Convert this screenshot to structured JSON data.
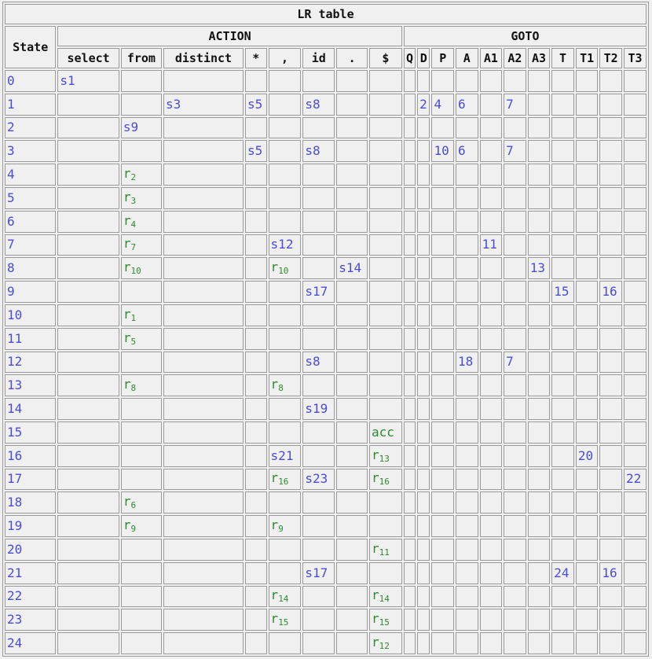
{
  "title": "LR table",
  "state_header": "State",
  "action_header": "ACTION",
  "goto_header": "GOTO",
  "action_symbols": [
    "select",
    "from",
    "distinct",
    "*",
    ",",
    "id",
    ".",
    "$"
  ],
  "goto_symbols": [
    "Q",
    "D",
    "P",
    "A",
    "A1",
    "A2",
    "A3",
    "T",
    "T1",
    "T2",
    "T3"
  ],
  "colors": {
    "shift_goto": "#4b4bd6",
    "reduce_accept": "#2e8b2e",
    "border": "#9a9a9a",
    "background": "#f0f0f0"
  },
  "rows": [
    {
      "state": "0",
      "action": {
        "select": "s1"
      },
      "goto": {}
    },
    {
      "state": "1",
      "action": {
        "distinct": "s3",
        "*": "s5",
        "id": "s8"
      },
      "goto": {
        "D": "2",
        "P": "4",
        "A": "6",
        "A2": "7"
      }
    },
    {
      "state": "2",
      "action": {
        "from": "s9"
      },
      "goto": {}
    },
    {
      "state": "3",
      "action": {
        "*": "s5",
        "id": "s8"
      },
      "goto": {
        "P": "10",
        "A": "6",
        "A2": "7"
      }
    },
    {
      "state": "4",
      "action": {
        "from": "r2"
      },
      "goto": {}
    },
    {
      "state": "5",
      "action": {
        "from": "r3"
      },
      "goto": {}
    },
    {
      "state": "6",
      "action": {
        "from": "r4"
      },
      "goto": {}
    },
    {
      "state": "7",
      "action": {
        "from": "r7",
        ",": "s12"
      },
      "goto": {
        "A1": "11"
      }
    },
    {
      "state": "8",
      "action": {
        "from": "r10",
        ",": "r10",
        ".": "s14"
      },
      "goto": {
        "A3": "13"
      }
    },
    {
      "state": "9",
      "action": {
        "id": "s17"
      },
      "goto": {
        "T": "15",
        "T2": "16"
      }
    },
    {
      "state": "10",
      "action": {
        "from": "r1"
      },
      "goto": {}
    },
    {
      "state": "11",
      "action": {
        "from": "r5"
      },
      "goto": {}
    },
    {
      "state": "12",
      "action": {
        "id": "s8"
      },
      "goto": {
        "A": "18",
        "A2": "7"
      }
    },
    {
      "state": "13",
      "action": {
        "from": "r8",
        ",": "r8"
      },
      "goto": {}
    },
    {
      "state": "14",
      "action": {
        "id": "s19"
      },
      "goto": {}
    },
    {
      "state": "15",
      "action": {
        "$": "acc"
      },
      "goto": {}
    },
    {
      "state": "16",
      "action": {
        ",": "s21",
        "$": "r13"
      },
      "goto": {
        "T1": "20"
      }
    },
    {
      "state": "17",
      "action": {
        ",": "r16",
        "id": "s23",
        "$": "r16"
      },
      "goto": {
        "T3": "22"
      }
    },
    {
      "state": "18",
      "action": {
        "from": "r6"
      },
      "goto": {}
    },
    {
      "state": "19",
      "action": {
        "from": "r9",
        ",": "r9"
      },
      "goto": {}
    },
    {
      "state": "20",
      "action": {
        "$": "r11"
      },
      "goto": {}
    },
    {
      "state": "21",
      "action": {
        "id": "s17"
      },
      "goto": {
        "T": "24",
        "T2": "16"
      }
    },
    {
      "state": "22",
      "action": {
        ",": "r14",
        "$": "r14"
      },
      "goto": {}
    },
    {
      "state": "23",
      "action": {
        ",": "r15",
        "$": "r15"
      },
      "goto": {}
    },
    {
      "state": "24",
      "action": {
        "$": "r12"
      },
      "goto": {}
    }
  ]
}
